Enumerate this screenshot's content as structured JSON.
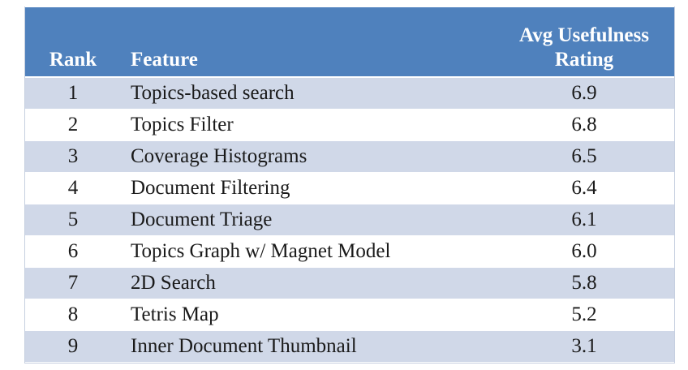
{
  "table": {
    "columns": {
      "rank": "Rank",
      "feature": "Feature",
      "rating_line1": "Avg Usefulness",
      "rating_line2": "Rating"
    },
    "rows": [
      {
        "rank": "1",
        "feature": "Topics-based search",
        "rating": "6.9"
      },
      {
        "rank": "2",
        "feature": "Topics Filter",
        "rating": "6.8"
      },
      {
        "rank": "3",
        "feature": "Coverage Histograms",
        "rating": "6.5"
      },
      {
        "rank": "4",
        "feature": "Document Filtering",
        "rating": "6.4"
      },
      {
        "rank": "5",
        "feature": "Document Triage",
        "rating": "6.1"
      },
      {
        "rank": "6",
        "feature": "Topics Graph w/ Magnet Model",
        "rating": "6.0"
      },
      {
        "rank": "7",
        "feature": "2D Search",
        "rating": "5.8"
      },
      {
        "rank": "8",
        "feature": "Tetris Map",
        "rating": "5.2"
      },
      {
        "rank": "9",
        "feature": "Inner Document Thumbnail",
        "rating": "3.1"
      }
    ],
    "colors": {
      "header_bg": "#4f81bd",
      "header_text": "#ffffff",
      "band_odd": "#d0d8e8",
      "band_even": "#ffffff"
    }
  }
}
